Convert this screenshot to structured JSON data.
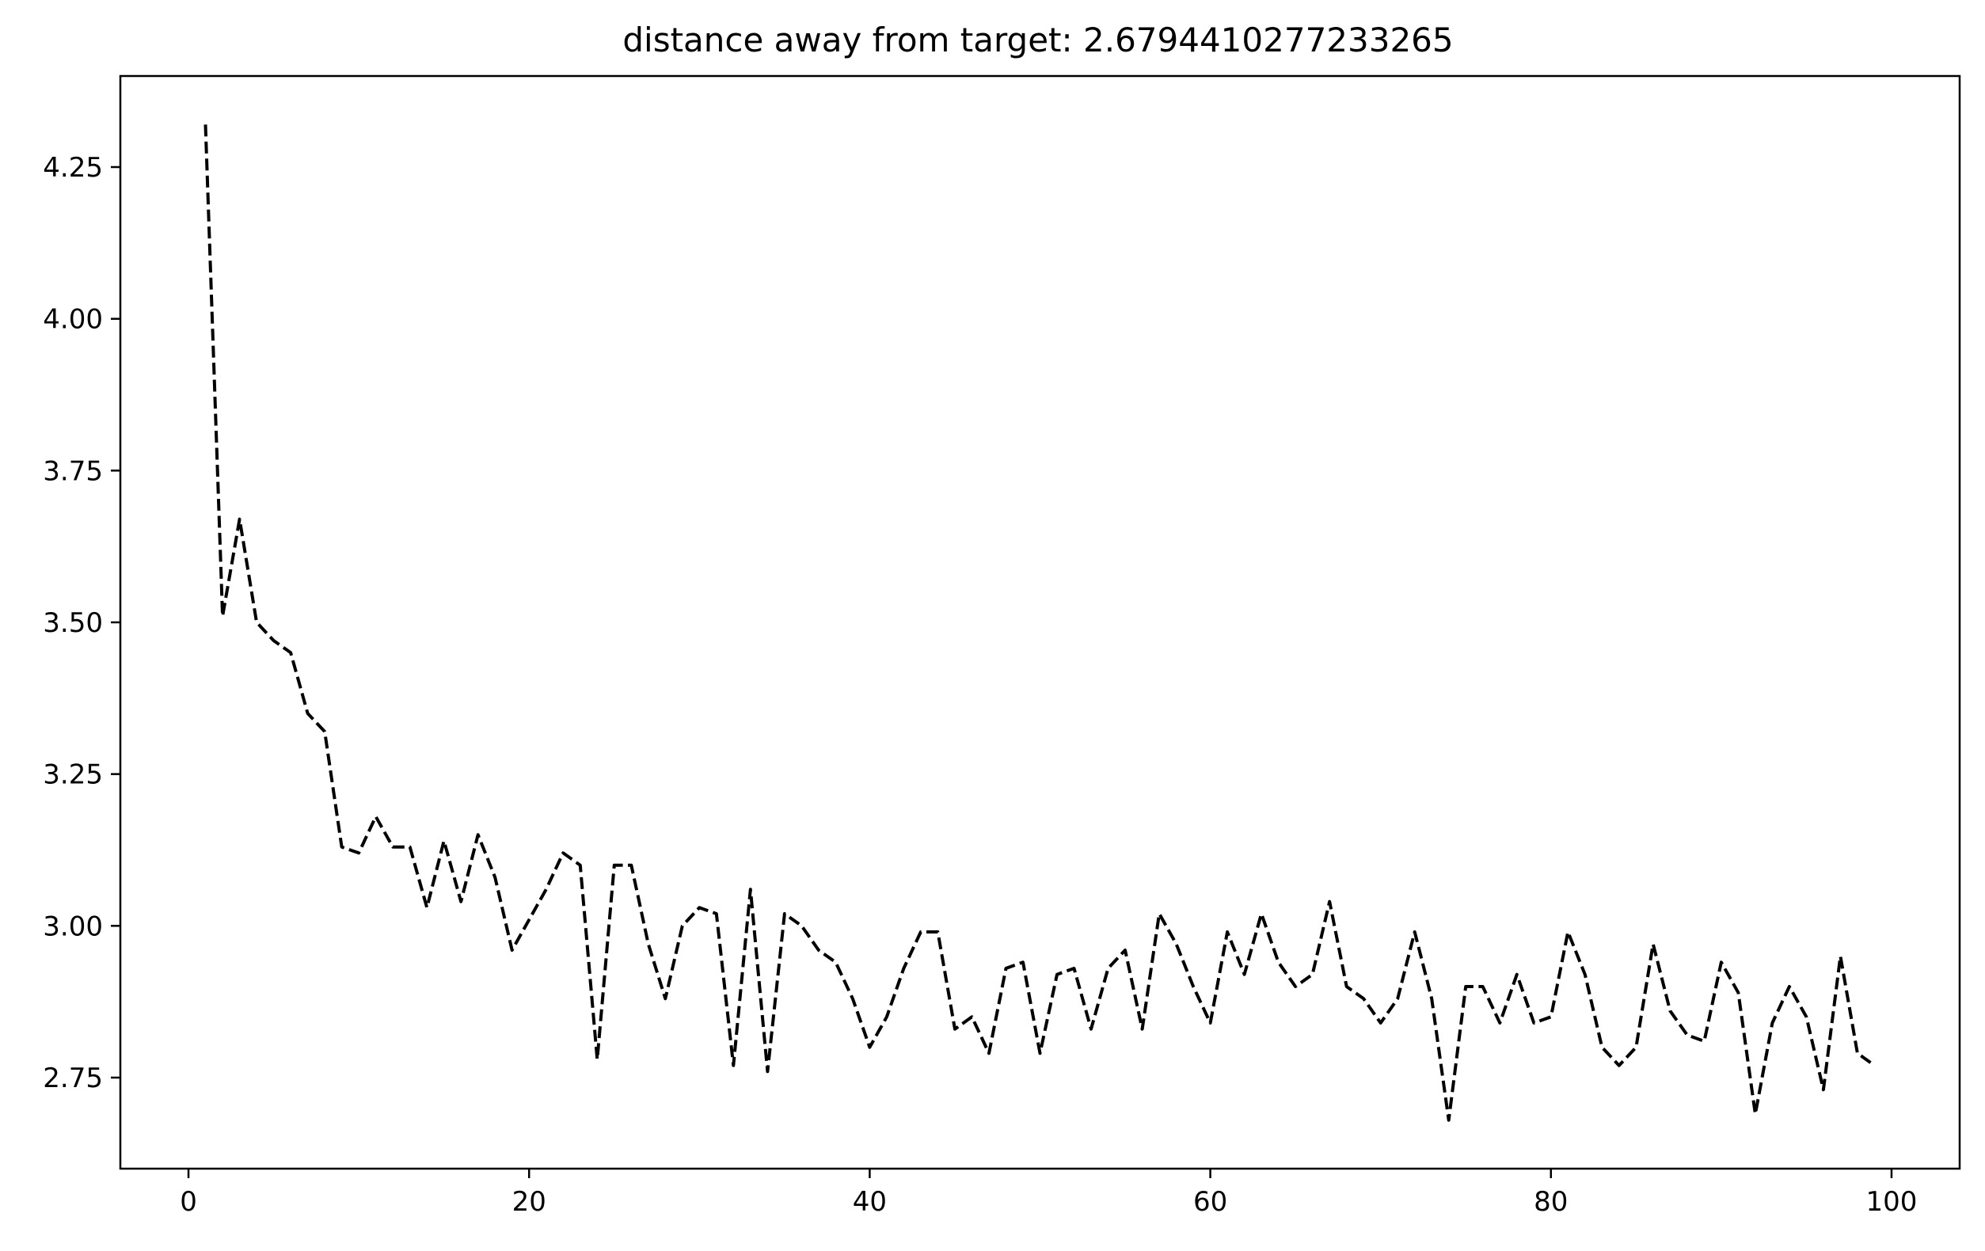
{
  "chart_data": {
    "type": "line",
    "title": "distance away from target: 2.6794410277233265",
    "xlabel": "",
    "ylabel": "",
    "xlim": [
      -4,
      104
    ],
    "ylim": [
      2.6,
      4.4
    ],
    "x_ticks": [
      0,
      20,
      40,
      60,
      80,
      100
    ],
    "x_tick_labels": [
      "0",
      "20",
      "40",
      "60",
      "80",
      "100"
    ],
    "y_ticks": [
      2.75,
      3.0,
      3.25,
      3.5,
      3.75,
      4.0,
      4.25
    ],
    "y_tick_labels": [
      "2.75",
      "3.00",
      "3.25",
      "3.50",
      "3.75",
      "4.00",
      "4.25"
    ],
    "grid": false,
    "legend": "none",
    "series": [
      {
        "style": "dashed",
        "color": "#000000",
        "x": [
          1,
          2,
          3,
          4,
          5,
          6,
          7,
          8,
          9,
          10,
          11,
          12,
          13,
          14,
          15,
          16,
          17,
          18,
          19,
          20,
          21,
          22,
          23,
          24,
          25,
          26,
          27,
          28,
          29,
          30,
          31,
          32,
          33,
          34,
          35,
          36,
          37,
          38,
          39,
          40,
          41,
          42,
          43,
          44,
          45,
          46,
          47,
          48,
          49,
          50,
          51,
          52,
          53,
          54,
          55,
          56,
          57,
          58,
          59,
          60,
          61,
          62,
          63,
          64,
          65,
          66,
          67,
          68,
          69,
          70,
          71,
          72,
          73,
          74,
          75,
          76,
          77,
          78,
          79,
          80,
          81,
          82,
          83,
          84,
          85,
          86,
          87,
          88,
          89,
          90,
          91,
          92,
          93,
          94,
          95,
          96,
          97,
          98,
          99
        ],
        "y": [
          4.32,
          3.51,
          3.67,
          3.5,
          3.47,
          3.45,
          3.35,
          3.32,
          3.13,
          3.12,
          3.18,
          3.13,
          3.13,
          3.03,
          3.14,
          3.04,
          3.15,
          3.08,
          2.96,
          3.01,
          3.06,
          3.12,
          3.1,
          2.78,
          3.1,
          3.1,
          2.97,
          2.88,
          3.0,
          3.03,
          3.02,
          2.77,
          3.06,
          2.76,
          3.02,
          3.0,
          2.96,
          2.94,
          2.88,
          2.8,
          2.85,
          2.93,
          2.99,
          2.99,
          2.83,
          2.85,
          2.79,
          2.93,
          2.94,
          2.79,
          2.92,
          2.93,
          2.83,
          2.93,
          2.96,
          2.83,
          3.02,
          2.97,
          2.9,
          2.84,
          2.99,
          2.92,
          3.02,
          2.94,
          2.9,
          2.92,
          3.04,
          2.9,
          2.88,
          2.84,
          2.88,
          2.99,
          2.88,
          2.68,
          2.9,
          2.9,
          2.84,
          2.92,
          2.84,
          2.85,
          2.99,
          2.92,
          2.8,
          2.77,
          2.8,
          2.97,
          2.86,
          2.82,
          2.81,
          2.94,
          2.89,
          2.69,
          2.84,
          2.9,
          2.85,
          2.73,
          2.95,
          2.79,
          2.77
        ]
      }
    ]
  }
}
